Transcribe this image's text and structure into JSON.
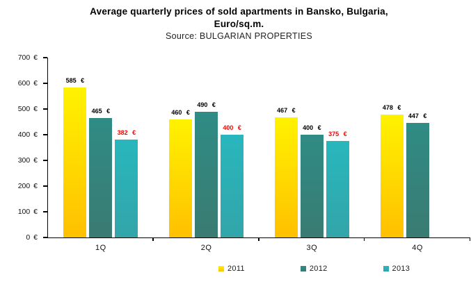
{
  "header": {
    "title_line1": "Average quarterly prices of sold apartments in Bansko, Bulgaria,",
    "title_line2": "Euro/sq.m.",
    "source": "Source: BULGARIAN PROPERTIES"
  },
  "chart_data": {
    "type": "bar",
    "title": "Average quarterly prices of sold apartments in Bansko, Bulgaria, Euro/sq.m.",
    "subtitle": "Source: BULGARIAN PROPERTIES",
    "categories": [
      "1Q",
      "2Q",
      "3Q",
      "4Q"
    ],
    "series": [
      {
        "name": "2011",
        "values": [
          585,
          460,
          467,
          478
        ],
        "color_top": "#FFF200",
        "color_bottom": "#FFC000",
        "label_color": "#000000"
      },
      {
        "name": "2012",
        "values": [
          465,
          490,
          400,
          447
        ],
        "color_top": "#2F8C85",
        "color_bottom": "#3A7B72",
        "label_color": "#000000"
      },
      {
        "name": "2013",
        "values": [
          382,
          400,
          375,
          null
        ],
        "color_top": "#28B7BD",
        "color_bottom": "#32A5A9",
        "label_color": "#FF0000"
      }
    ],
    "ylim": [
      0,
      700
    ],
    "yticks": [
      {
        "value": 0,
        "label": "0 €"
      },
      {
        "value": 100,
        "label": "100 €"
      },
      {
        "value": 200,
        "label": "200 €"
      },
      {
        "value": 300,
        "label": "300 €"
      },
      {
        "value": 400,
        "label": "400 €"
      },
      {
        "value": 500,
        "label": "500 €"
      },
      {
        "value": 600,
        "label": "600 €"
      },
      {
        "value": 700,
        "label": "700 €"
      }
    ],
    "value_suffix": " €",
    "grid": false,
    "legend_position": "bottom"
  }
}
